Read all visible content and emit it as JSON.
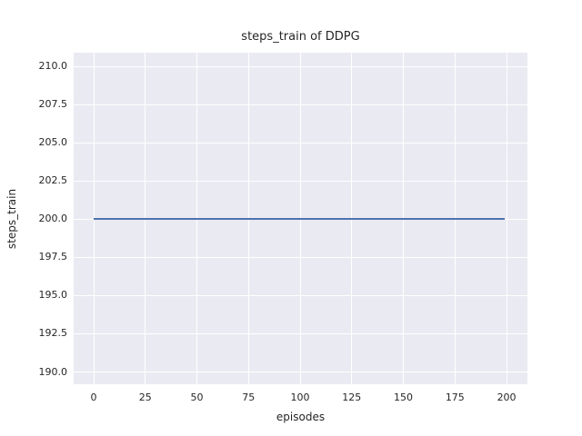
{
  "colors": {
    "figure_background": "#ffffff",
    "plot_background": "#EAEAF2",
    "gridline": "#ffffff",
    "text": "#262626",
    "line": "#4C72B0"
  },
  "chart_data": {
    "type": "line",
    "title": "steps_train of DDPG",
    "xlabel": "episodes",
    "ylabel": "steps_train",
    "grid": true,
    "legend_position": "none",
    "xlim": [
      -9.7,
      210.1
    ],
    "ylim": [
      189.2,
      210.9
    ],
    "x_ticks": [
      0,
      25,
      50,
      75,
      100,
      125,
      150,
      175,
      200
    ],
    "x_tick_labels": [
      "0",
      "25",
      "50",
      "75",
      "100",
      "125",
      "150",
      "175",
      "200"
    ],
    "y_ticks": [
      190.0,
      192.5,
      195.0,
      197.5,
      200.0,
      202.5,
      205.0,
      207.5,
      210.0
    ],
    "y_tick_labels": [
      "190.0",
      "192.5",
      "195.0",
      "197.5",
      "200.0",
      "202.5",
      "205.0",
      "207.5",
      "210.0"
    ],
    "series": [
      {
        "name": "steps_train",
        "color": "#4C72B0",
        "x": [
          0,
          199
        ],
        "y": [
          200,
          200
        ]
      }
    ]
  }
}
